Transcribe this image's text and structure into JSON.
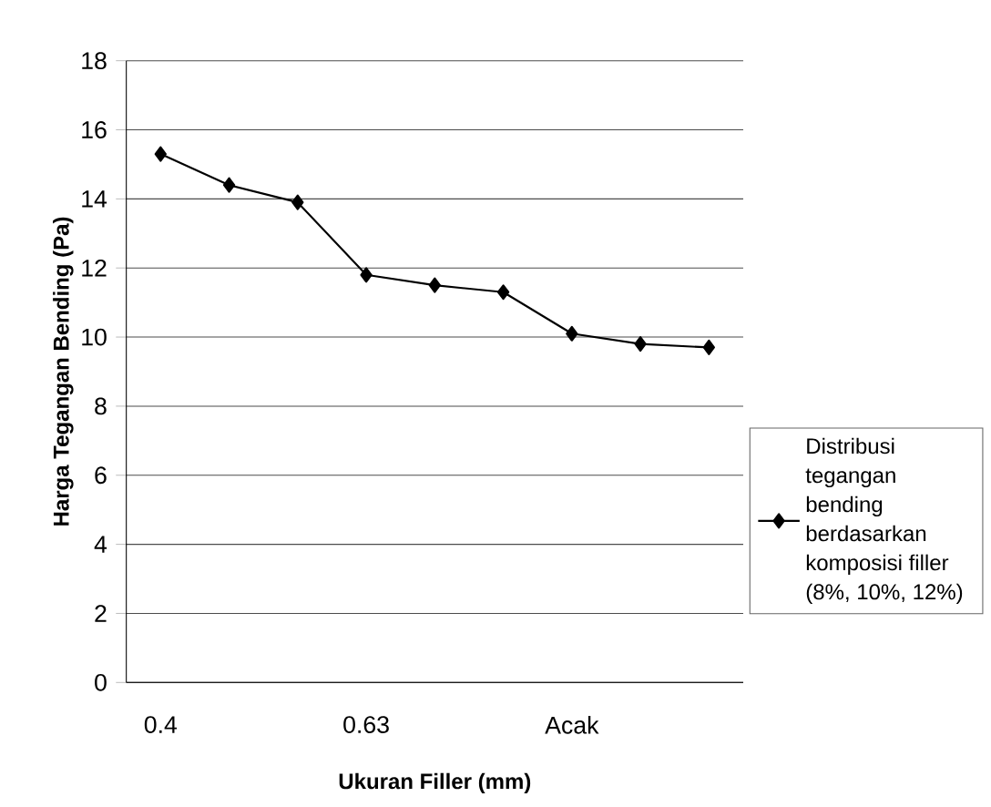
{
  "chart_data": {
    "type": "line",
    "xlabel": "Ukuran Filler (mm)",
    "ylabel": "Harga Tegangan Bending (Pa)",
    "categories": [
      "0.4",
      null,
      null,
      "0.63",
      null,
      null,
      "Acak",
      null,
      null
    ],
    "series": [
      {
        "name": "Distribusi tegangan bending berdasarkan komposisi filler (8%, 10%, 12%)",
        "color": "#000000",
        "values": [
          15.3,
          14.4,
          13.9,
          11.8,
          11.5,
          11.3,
          10.1,
          9.8,
          9.7
        ]
      }
    ],
    "ylim": [
      0,
      18
    ],
    "yticks": [
      0,
      2,
      4,
      6,
      8,
      10,
      12,
      14,
      16,
      18
    ],
    "grid": "y",
    "legend": "right",
    "marker": "diamond",
    "line_style": "solid"
  }
}
